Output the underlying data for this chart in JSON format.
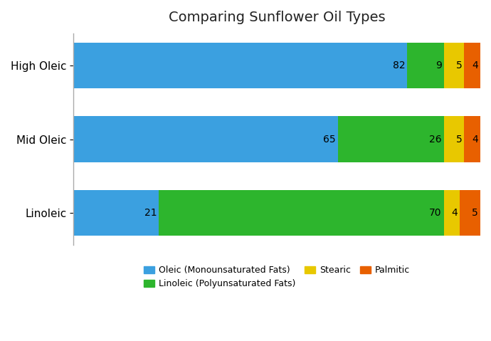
{
  "title": "Comparing Sunflower Oil Types",
  "categories": [
    "High Oleic",
    "Mid Oleic",
    "Linoleic"
  ],
  "series": [
    {
      "name": "Oleic (Monounsaturated Fats)",
      "color": "#3BA0E0",
      "values": [
        82,
        65,
        21
      ]
    },
    {
      "name": "Linoleic (Polyunsaturated Fats)",
      "color": "#2DB52D",
      "values": [
        9,
        26,
        70
      ]
    },
    {
      "name": "Stearic",
      "color": "#E8C800",
      "values": [
        5,
        5,
        4
      ]
    },
    {
      "name": "Palmitic",
      "color": "#E86000",
      "values": [
        4,
        4,
        5
      ]
    }
  ],
  "bar_height": 0.62,
  "background_color": "#ffffff",
  "title_fontsize": 14,
  "label_fontsize": 10,
  "legend_fontsize": 9,
  "grid_color": "#dddddd",
  "yticklabel_fontsize": 11,
  "xlim": [
    0,
    100
  ]
}
